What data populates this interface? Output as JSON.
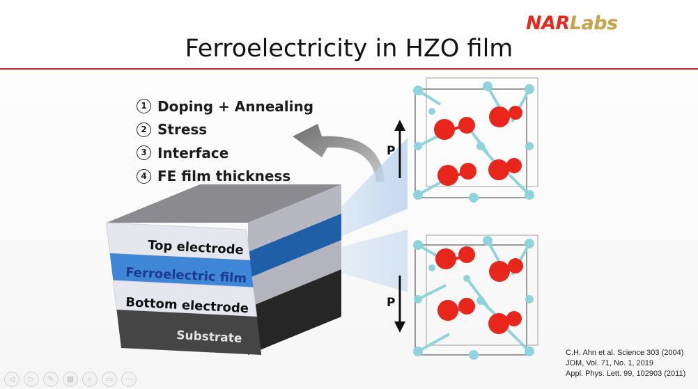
{
  "slide": {
    "logo": {
      "part1": "NAR",
      "part2": "Labs"
    },
    "title": "Ferroelectricity in HZO film",
    "factors": [
      {
        "num": "1",
        "text": "Doping + Annealing"
      },
      {
        "num": "2",
        "text": "Stress"
      },
      {
        "num": "3",
        "text": "Interface"
      },
      {
        "num": "4",
        "text": "FE film thickness"
      }
    ],
    "stack_layers": [
      {
        "label": "Top electrode",
        "color": "#e4e4ee"
      },
      {
        "label": "Ferroelectric film",
        "color": "#3f86d6"
      },
      {
        "label": "Bottom electrode",
        "color": "#e4e4ee"
      },
      {
        "label": "Substrate",
        "color": "#3d3d3d"
      }
    ],
    "polarization": {
      "up_label": "P",
      "down_label": "P"
    },
    "colors": {
      "oxygen": "#e8261b",
      "metal": "#8fd3dc",
      "accent": "#b42a2a"
    },
    "references": [
      "C.H. Ahn et al. Science 303 (2004)",
      "JOM, Vol. 71, No. 1, 2019",
      "Appl. Phys. Lett. 99, 102903 (2011)"
    ]
  },
  "toolbar": {
    "buttons": [
      {
        "name": "prev-slide-button",
        "glyph": "◁"
      },
      {
        "name": "next-slide-button",
        "glyph": "▷"
      },
      {
        "name": "pen-tool-button",
        "glyph": "✎"
      },
      {
        "name": "slides-grid-button",
        "glyph": "▦"
      },
      {
        "name": "zoom-button",
        "glyph": "⌕"
      },
      {
        "name": "subtitles-button",
        "glyph": "▭"
      },
      {
        "name": "more-options-button",
        "glyph": "⋯"
      }
    ]
  }
}
